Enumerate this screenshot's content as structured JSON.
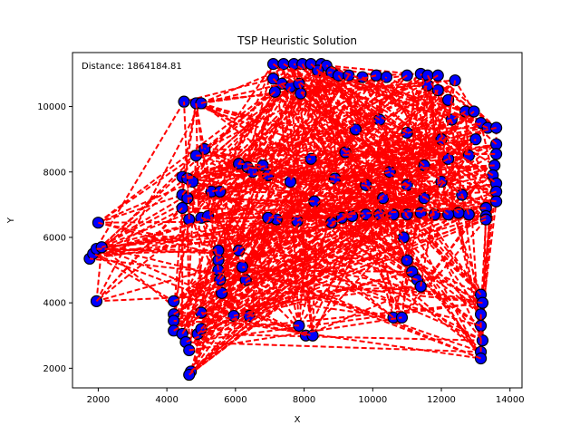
{
  "chart_data": {
    "type": "scatter",
    "title": "TSP Heuristic Solution",
    "xlabel": "X",
    "ylabel": "Y",
    "annotation": "Distance: 1864184.81",
    "xlim": [
      1250,
      14350
    ],
    "ylim": [
      1400,
      11650
    ],
    "xticks": [
      2000,
      4000,
      6000,
      8000,
      10000,
      12000,
      14000
    ],
    "yticks": [
      2000,
      4000,
      6000,
      8000,
      10000
    ],
    "xtick_labels": [
      "2000",
      "4000",
      "6000",
      "8000",
      "10000",
      "12000",
      "14000"
    ],
    "ytick_labels": [
      "2000",
      "4000",
      "6000",
      "8000",
      "10000"
    ],
    "grid": false,
    "marker_color": "#0000ff",
    "marker_edge_color": "#000000",
    "route_color": "#ff0000",
    "route_style": "dashed",
    "points": [
      [
        2000,
        6450
      ],
      [
        1750,
        5350
      ],
      [
        1850,
        5500
      ],
      [
        1950,
        5650
      ],
      [
        2100,
        5700
      ],
      [
        1950,
        4050
      ],
      [
        4200,
        4050
      ],
      [
        4200,
        3650
      ],
      [
        4200,
        3450
      ],
      [
        4200,
        3150
      ],
      [
        4450,
        3050
      ],
      [
        4550,
        2800
      ],
      [
        4650,
        2550
      ],
      [
        4700,
        1900
      ],
      [
        4650,
        1800
      ],
      [
        4900,
        3050
      ],
      [
        5000,
        3200
      ],
      [
        5000,
        3700
      ],
      [
        4500,
        10150
      ],
      [
        4850,
        10100
      ],
      [
        5000,
        10100
      ],
      [
        4850,
        8500
      ],
      [
        5100,
        8700
      ],
      [
        4450,
        7850
      ],
      [
        4600,
        7800
      ],
      [
        4750,
        7700
      ],
      [
        4450,
        7300
      ],
      [
        4600,
        7200
      ],
      [
        4450,
        6900
      ],
      [
        4650,
        6550
      ],
      [
        5000,
        6600
      ],
      [
        5200,
        6650
      ],
      [
        5300,
        7400
      ],
      [
        5550,
        7400
      ],
      [
        6100,
        8250
      ],
      [
        6350,
        8150
      ],
      [
        6500,
        8000
      ],
      [
        6800,
        8200
      ],
      [
        6950,
        7900
      ],
      [
        5500,
        5600
      ],
      [
        5500,
        5300
      ],
      [
        5500,
        5000
      ],
      [
        5550,
        4700
      ],
      [
        5600,
        4300
      ],
      [
        5950,
        3600
      ],
      [
        6400,
        3600
      ],
      [
        6100,
        5600
      ],
      [
        6200,
        5100
      ],
      [
        6300,
        4700
      ],
      [
        7100,
        11300
      ],
      [
        7400,
        11300
      ],
      [
        7700,
        11300
      ],
      [
        7950,
        11300
      ],
      [
        8200,
        11300
      ],
      [
        8500,
        11300
      ],
      [
        8650,
        11250
      ],
      [
        7100,
        10850
      ],
      [
        7350,
        10700
      ],
      [
        7600,
        10600
      ],
      [
        7850,
        10700
      ],
      [
        7900,
        10400
      ],
      [
        7150,
        10450
      ],
      [
        8400,
        11100
      ],
      [
        8800,
        11050
      ],
      [
        9000,
        10950
      ],
      [
        9300,
        10950
      ],
      [
        9700,
        10900
      ],
      [
        10100,
        10950
      ],
      [
        10400,
        10900
      ],
      [
        11000,
        10950
      ],
      [
        11400,
        11000
      ],
      [
        11600,
        10950
      ],
      [
        11900,
        10950
      ],
      [
        12400,
        10800
      ],
      [
        11600,
        10650
      ],
      [
        11900,
        10500
      ],
      [
        12200,
        10200
      ],
      [
        12700,
        9850
      ],
      [
        12950,
        9850
      ],
      [
        13150,
        9500
      ],
      [
        13350,
        9350
      ],
      [
        13600,
        9350
      ],
      [
        13600,
        8850
      ],
      [
        13600,
        8550
      ],
      [
        13550,
        8200
      ],
      [
        13500,
        7900
      ],
      [
        13600,
        7650
      ],
      [
        13600,
        7400
      ],
      [
        13600,
        7100
      ],
      [
        13300,
        6900
      ],
      [
        13300,
        6650
      ],
      [
        13300,
        6550
      ],
      [
        12800,
        6700
      ],
      [
        12500,
        6750
      ],
      [
        12200,
        6700
      ],
      [
        11800,
        6700
      ],
      [
        11400,
        6750
      ],
      [
        11000,
        6700
      ],
      [
        10600,
        6700
      ],
      [
        10200,
        6700
      ],
      [
        9800,
        6700
      ],
      [
        9400,
        6650
      ],
      [
        9100,
        6600
      ],
      [
        8800,
        6450
      ],
      [
        7800,
        6500
      ],
      [
        7200,
        6550
      ],
      [
        6950,
        6600
      ],
      [
        10900,
        6000
      ],
      [
        11000,
        5300
      ],
      [
        11150,
        4950
      ],
      [
        11300,
        4700
      ],
      [
        11400,
        4500
      ],
      [
        10600,
        3550
      ],
      [
        10850,
        3550
      ],
      [
        7850,
        3300
      ],
      [
        8050,
        3000
      ],
      [
        8250,
        3000
      ],
      [
        13150,
        4250
      ],
      [
        13200,
        4000
      ],
      [
        13150,
        3650
      ],
      [
        13150,
        3300
      ],
      [
        13200,
        2850
      ],
      [
        13150,
        2500
      ],
      [
        13150,
        2300
      ],
      [
        11500,
        8200
      ],
      [
        11000,
        7600
      ],
      [
        12000,
        7700
      ],
      [
        12200,
        8400
      ],
      [
        10500,
        8000
      ],
      [
        9800,
        7600
      ],
      [
        8900,
        7800
      ],
      [
        8300,
        7100
      ],
      [
        9500,
        9300
      ],
      [
        10200,
        9600
      ],
      [
        11000,
        9200
      ],
      [
        12000,
        9000
      ],
      [
        12800,
        8500
      ],
      [
        12600,
        7300
      ],
      [
        11500,
        7200
      ],
      [
        10300,
        7200
      ],
      [
        9200,
        8600
      ],
      [
        8200,
        8400
      ],
      [
        7600,
        7700
      ],
      [
        12300,
        9600
      ],
      [
        13000,
        9000
      ]
    ]
  }
}
